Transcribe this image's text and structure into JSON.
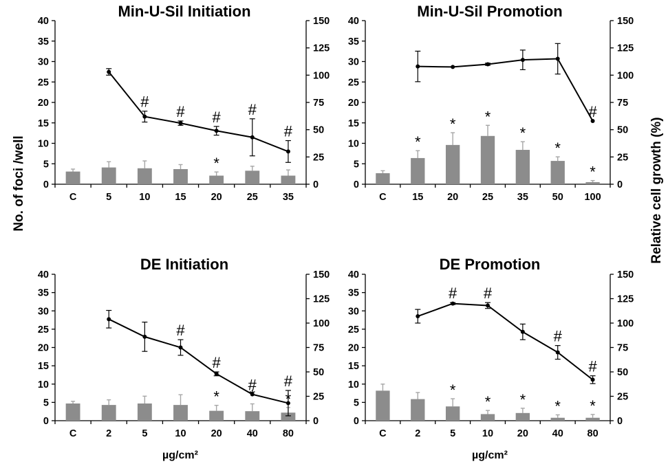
{
  "figure": {
    "ylabel_left": "No. of foci /well",
    "ylabel_right": "Relative cell growth (%)",
    "xlabel": "µg/cm²"
  },
  "chart_data": [
    {
      "type": "bar+line",
      "title": "Min-U-Sil  Initiation",
      "categories": [
        "C",
        "5",
        "10",
        "15",
        "20",
        "25",
        "35"
      ],
      "y_left_lim": [
        0,
        40
      ],
      "y_left_ticks": [
        0,
        5,
        10,
        15,
        20,
        25,
        30,
        35,
        40
      ],
      "y_right_lim": [
        0,
        150
      ],
      "y_right_ticks": [
        0,
        25,
        50,
        75,
        100,
        125,
        150
      ],
      "bars": {
        "values": [
          3.1,
          4.1,
          3.9,
          3.7,
          2.1,
          3.3,
          2.1
        ],
        "errors": [
          0.6,
          1.4,
          1.8,
          1.1,
          0.9,
          1.1,
          1.4
        ],
        "marks": [
          "",
          "",
          "",
          "",
          "*",
          "",
          ""
        ]
      },
      "line": {
        "values": [
          null,
          103,
          62,
          56,
          49,
          43,
          30
        ],
        "errors": [
          0,
          3,
          5,
          2,
          4,
          17,
          10
        ],
        "marks": [
          "",
          "",
          "#",
          "#",
          "#",
          "#",
          "#"
        ]
      }
    },
    {
      "type": "bar+line",
      "title": "Min-U-Sil  Promotion",
      "categories": [
        "C",
        "15",
        "20",
        "25",
        "35",
        "50",
        "100"
      ],
      "y_left_lim": [
        0,
        40
      ],
      "y_left_ticks": [
        0,
        5,
        10,
        15,
        20,
        25,
        30,
        35,
        40
      ],
      "y_right_lim": [
        0,
        150
      ],
      "y_right_ticks": [
        0,
        25,
        50,
        75,
        100,
        125,
        150
      ],
      "bars": {
        "values": [
          2.7,
          6.4,
          9.6,
          11.8,
          8.4,
          5.7,
          0.5
        ],
        "errors": [
          0.6,
          1.8,
          3.0,
          2.6,
          2.0,
          1.0,
          0.4
        ],
        "marks": [
          "",
          "*",
          "*",
          "*",
          "*",
          "*",
          "*"
        ]
      },
      "line": {
        "values": [
          null,
          108,
          107.5,
          110,
          114,
          115,
          58
        ],
        "errors": [
          0,
          14,
          0,
          1,
          9,
          14,
          0
        ],
        "marks": [
          "",
          "",
          "",
          "",
          "",
          "",
          "#"
        ]
      }
    },
    {
      "type": "bar+line",
      "title": "DE  Initiation",
      "categories": [
        "C",
        "2",
        "5",
        "10",
        "20",
        "40",
        "80"
      ],
      "y_left_lim": [
        0,
        40
      ],
      "y_left_ticks": [
        0,
        5,
        10,
        15,
        20,
        25,
        30,
        35,
        40
      ],
      "y_right_lim": [
        0,
        150
      ],
      "y_right_ticks": [
        0,
        25,
        50,
        75,
        100,
        125,
        150
      ],
      "bars": {
        "values": [
          4.7,
          4.3,
          4.7,
          4.3,
          2.7,
          2.6,
          2.2
        ],
        "errors": [
          0.6,
          1.4,
          2.0,
          2.8,
          1.5,
          2.0,
          1.4
        ],
        "marks": [
          "",
          "",
          "",
          "",
          "*",
          "*",
          "*"
        ]
      },
      "line": {
        "values": [
          null,
          104,
          86,
          75,
          48,
          27,
          18
        ],
        "errors": [
          0,
          9,
          15,
          8,
          2,
          0,
          13
        ],
        "marks": [
          "",
          "",
          "",
          "#",
          "#",
          "#",
          "#"
        ]
      }
    },
    {
      "type": "bar+line",
      "title": "DE  Promotion",
      "categories": [
        "C",
        "2",
        "5",
        "10",
        "20",
        "40",
        "80"
      ],
      "y_left_lim": [
        0,
        40
      ],
      "y_left_ticks": [
        0,
        5,
        10,
        15,
        20,
        25,
        30,
        35,
        40
      ],
      "y_right_lim": [
        0,
        150
      ],
      "y_right_ticks": [
        0,
        25,
        50,
        75,
        100,
        125,
        150
      ],
      "bars": {
        "values": [
          8.2,
          5.9,
          3.9,
          1.8,
          2.1,
          0.8,
          0.8
        ],
        "errors": [
          1.8,
          1.8,
          2.1,
          1.0,
          1.3,
          0.8,
          0.9
        ],
        "marks": [
          "",
          "",
          "*",
          "*",
          "*",
          "*",
          "*"
        ]
      },
      "line": {
        "values": [
          null,
          107,
          120,
          118,
          91,
          70,
          42
        ],
        "errors": [
          0,
          7,
          1,
          3,
          8,
          7,
          4
        ],
        "marks": [
          "",
          "",
          "#",
          "#",
          "",
          "#",
          "#"
        ]
      }
    }
  ]
}
